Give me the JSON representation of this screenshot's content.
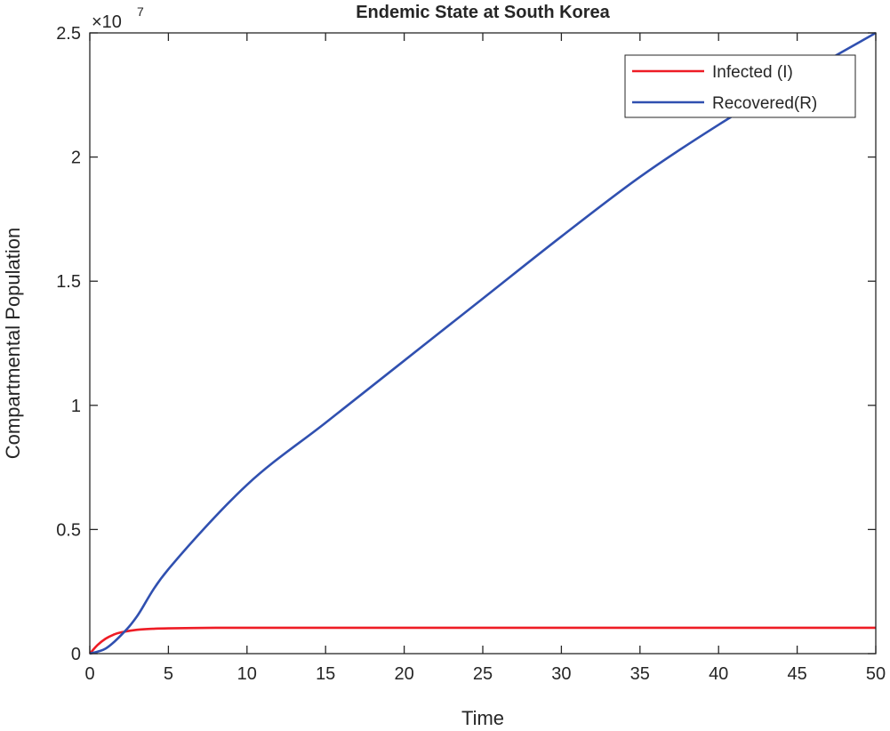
{
  "chart_data": {
    "type": "line",
    "title": "Endemic State at South Korea",
    "xlabel": "Time",
    "ylabel": "Compartmental Population",
    "y_exponent_label": "×10",
    "y_exponent": "7",
    "xlim": [
      0,
      50
    ],
    "ylim": [
      0,
      25000000
    ],
    "x_ticks": [
      0,
      5,
      10,
      15,
      20,
      25,
      30,
      35,
      40,
      45,
      50
    ],
    "x_tick_labels": [
      "0",
      "5",
      "10",
      "15",
      "20",
      "25",
      "30",
      "35",
      "40",
      "45",
      "50"
    ],
    "y_ticks": [
      0,
      5000000,
      10000000,
      15000000,
      20000000,
      25000000
    ],
    "y_tick_labels": [
      "0",
      "0.5",
      "1",
      "1.5",
      "2",
      "2.5"
    ],
    "grid": false,
    "legend_position": "top-right",
    "series": [
      {
        "name": "Infected (I)",
        "color": "#ee1c25",
        "x": [
          0,
          0.5,
          1,
          1.5,
          2,
          3,
          4,
          5,
          8,
          10,
          20,
          30,
          40,
          50
        ],
        "y": [
          0,
          350000,
          600000,
          760000,
          860000,
          960000,
          1000000,
          1020000,
          1040000,
          1040000,
          1040000,
          1040000,
          1040000,
          1040000
        ]
      },
      {
        "name": "Recovered(R)",
        "color": "#3050b0",
        "x": [
          0,
          1,
          2,
          3,
          5,
          10,
          15,
          20,
          25,
          30,
          35,
          40,
          45,
          50
        ],
        "y": [
          0,
          200000,
          750000,
          1500000,
          3400000,
          6800000,
          9300000,
          11800000,
          14300000,
          16800000,
          19200000,
          21300000,
          23200000,
          25000000
        ]
      }
    ]
  }
}
